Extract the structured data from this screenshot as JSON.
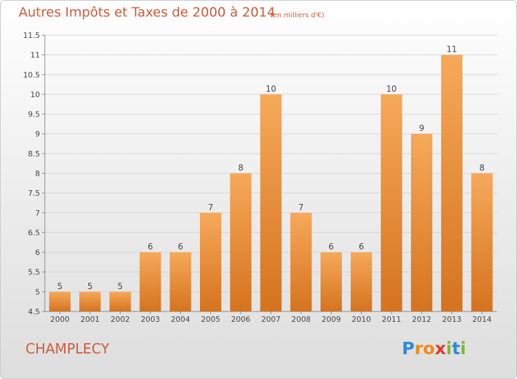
{
  "header": {
    "title": "Autres Impôts et Taxes de 2000 à 2014",
    "subtitle": "(en milliers d'€)"
  },
  "footer": {
    "city": "CHAMPLECY",
    "brand_letters": [
      "P",
      "r",
      "o",
      "x",
      "i",
      "t",
      "i"
    ]
  },
  "colors": {
    "title": "#d05a3a",
    "bar_light": "#f6a95a",
    "bar_dark": "#d5731e",
    "brand": [
      "#2f8ad8",
      "#ef8a1c",
      "#ef8a1c",
      "#e2382a",
      "#7cb82f",
      "#2f8ad8",
      "#7cb82f"
    ]
  },
  "chart_data": {
    "type": "bar",
    "title": "Autres Impôts et Taxes de 2000 à 2014",
    "subtitle": "(en milliers d'€)",
    "categories": [
      "2000",
      "2001",
      "2002",
      "2003",
      "2004",
      "2005",
      "2006",
      "2007",
      "2008",
      "2009",
      "2010",
      "2011",
      "2012",
      "2013",
      "2014"
    ],
    "values": [
      5,
      5,
      5,
      6,
      6,
      7,
      8,
      10,
      7,
      6,
      6,
      10,
      9,
      11,
      8
    ],
    "data_labels": [
      "5",
      "5",
      "5",
      "6",
      "6",
      "7",
      "8",
      "10",
      "7",
      "6",
      "6",
      "10",
      "9",
      "11",
      "8"
    ],
    "ylim": [
      4.5,
      11.5
    ],
    "yticks": [
      4.5,
      5,
      5.5,
      6,
      6.5,
      7,
      7.5,
      8,
      8.5,
      9,
      9.5,
      10,
      10.5,
      11,
      11.5
    ],
    "ytick_labels": [
      "4.5",
      "5",
      "5.5",
      "6",
      "6.5",
      "7",
      "7.5",
      "8",
      "8.5",
      "9",
      "9.5",
      "10",
      "10.5",
      "11",
      "11.5"
    ],
    "grid": "horizontal",
    "legend": "none"
  }
}
